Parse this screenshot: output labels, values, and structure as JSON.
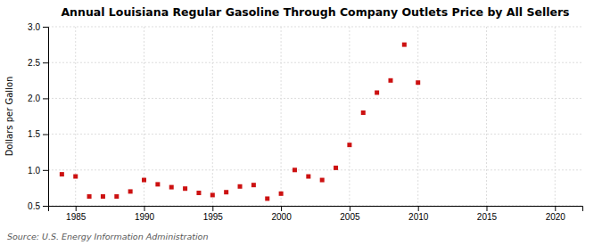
{
  "chart_data": {
    "type": "scatter",
    "title": "Annual Louisiana Regular Gasoline Through Company Outlets Price by All Sellers",
    "ylabel": "Dollars per Gallon",
    "annotations": [
      "Source: U.S. Energy Information Administration"
    ],
    "x": [
      1984,
      1985,
      1986,
      1987,
      1988,
      1989,
      1990,
      1991,
      1992,
      1993,
      1994,
      1995,
      1996,
      1997,
      1998,
      1999,
      2000,
      2001,
      2002,
      2003,
      2004,
      2005,
      2006,
      2007,
      2008,
      2009,
      2010
    ],
    "values": [
      0.94,
      0.91,
      0.63,
      0.63,
      0.63,
      0.7,
      0.86,
      0.8,
      0.76,
      0.74,
      0.68,
      0.65,
      0.69,
      0.77,
      0.79,
      0.6,
      0.67,
      1.0,
      0.91,
      0.86,
      1.03,
      1.35,
      1.8,
      2.08,
      2.25,
      2.75,
      2.22
    ],
    "color": "#cc1111",
    "marker": "square",
    "xlim": [
      1983,
      2022
    ],
    "ylim": [
      0.5,
      3.0
    ],
    "xticks": [
      1985,
      1990,
      1995,
      2000,
      2005,
      2010,
      2015,
      2020
    ],
    "yticks": [
      0.5,
      {
        "value": 1.0,
        "label": "1.0"
      },
      1.5,
      {
        "value": 2.0,
        "label": "2.0"
      },
      2.5,
      {
        "value": 3.0,
        "label": "3.0"
      }
    ],
    "grid": true
  }
}
